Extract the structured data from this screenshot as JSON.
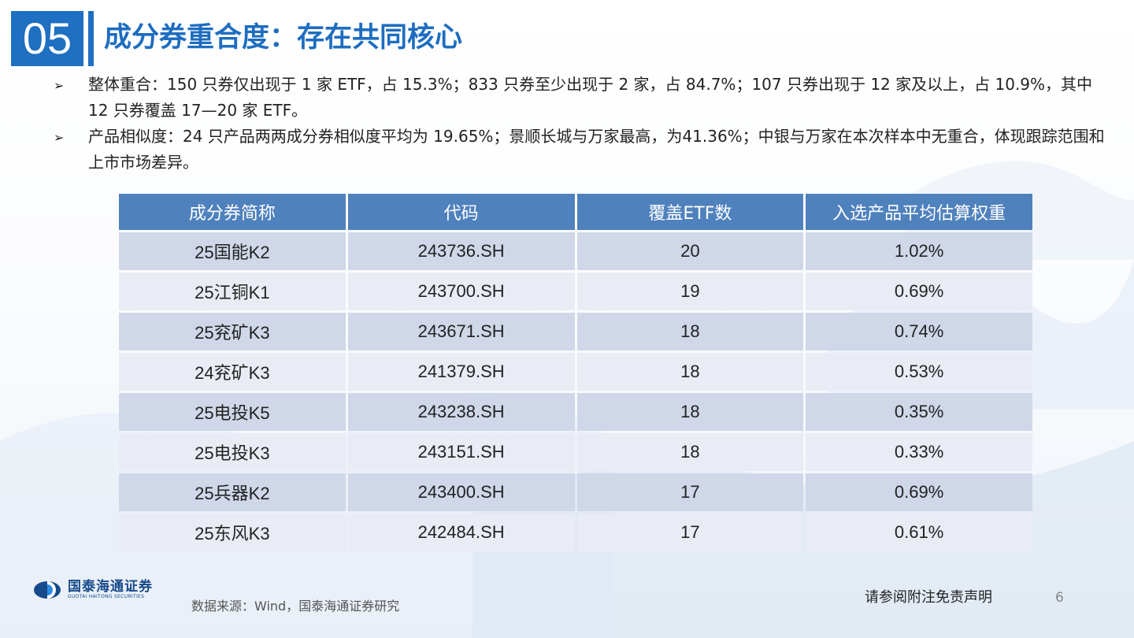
{
  "header": {
    "section_number": "05",
    "title": "成分券重合度：存在共同核心"
  },
  "bullets": [
    {
      "marker": "➢",
      "text": "整体重合：150 只券仅出现于 1 家 ETF，占 15.3%；833 只券至少出现于 2 家，占 84.7%；107 只券出现于 12 家及以上，占 10.9%，其中 12 只券覆盖 17—20 家 ETF。"
    },
    {
      "marker": "➢",
      "text": "产品相似度：24 只产品两两成分券相似度平均为 19.65%；景顺长城与万家最高，为41.36%；中银与万家在本次样本中无重合，体现跟踪范围和上市市场差异。"
    }
  ],
  "table": {
    "headers": [
      "成分券简称",
      "代码",
      "覆盖ETF数",
      "入选产品平均估算权重"
    ],
    "rows": [
      [
        "25国能K2",
        "243736.SH",
        "20",
        "1.02%"
      ],
      [
        "25江铜K1",
        "243700.SH",
        "19",
        "0.69%"
      ],
      [
        "25兖矿K3",
        "243671.SH",
        "18",
        "0.74%"
      ],
      [
        "24兖矿K3",
        "241379.SH",
        "18",
        "0.53%"
      ],
      [
        "25电投K5",
        "243238.SH",
        "18",
        "0.35%"
      ],
      [
        "25电投K3",
        "243151.SH",
        "18",
        "0.33%"
      ],
      [
        "25兵器K2",
        "243400.SH",
        "17",
        "0.69%"
      ],
      [
        "25东风K3",
        "242484.SH",
        "17",
        "0.61%"
      ]
    ]
  },
  "footer": {
    "logo_cn": "国泰海通证券",
    "logo_en": "GUOTAI HAITONG SECURITIES",
    "source": "数据来源：Wind，国泰海通证券研究",
    "disclaimer": "请参阅附注免责声明",
    "page_number": "6"
  },
  "colors": {
    "accent_blue": "#1f6fc2",
    "table_header": "#4f81bd",
    "row_odd": "#cfd7e8",
    "row_even": "#e9ecf4",
    "logo_blue": "#174a8b"
  },
  "icons": {
    "logo": "guotai-haitong-logo-icon"
  }
}
